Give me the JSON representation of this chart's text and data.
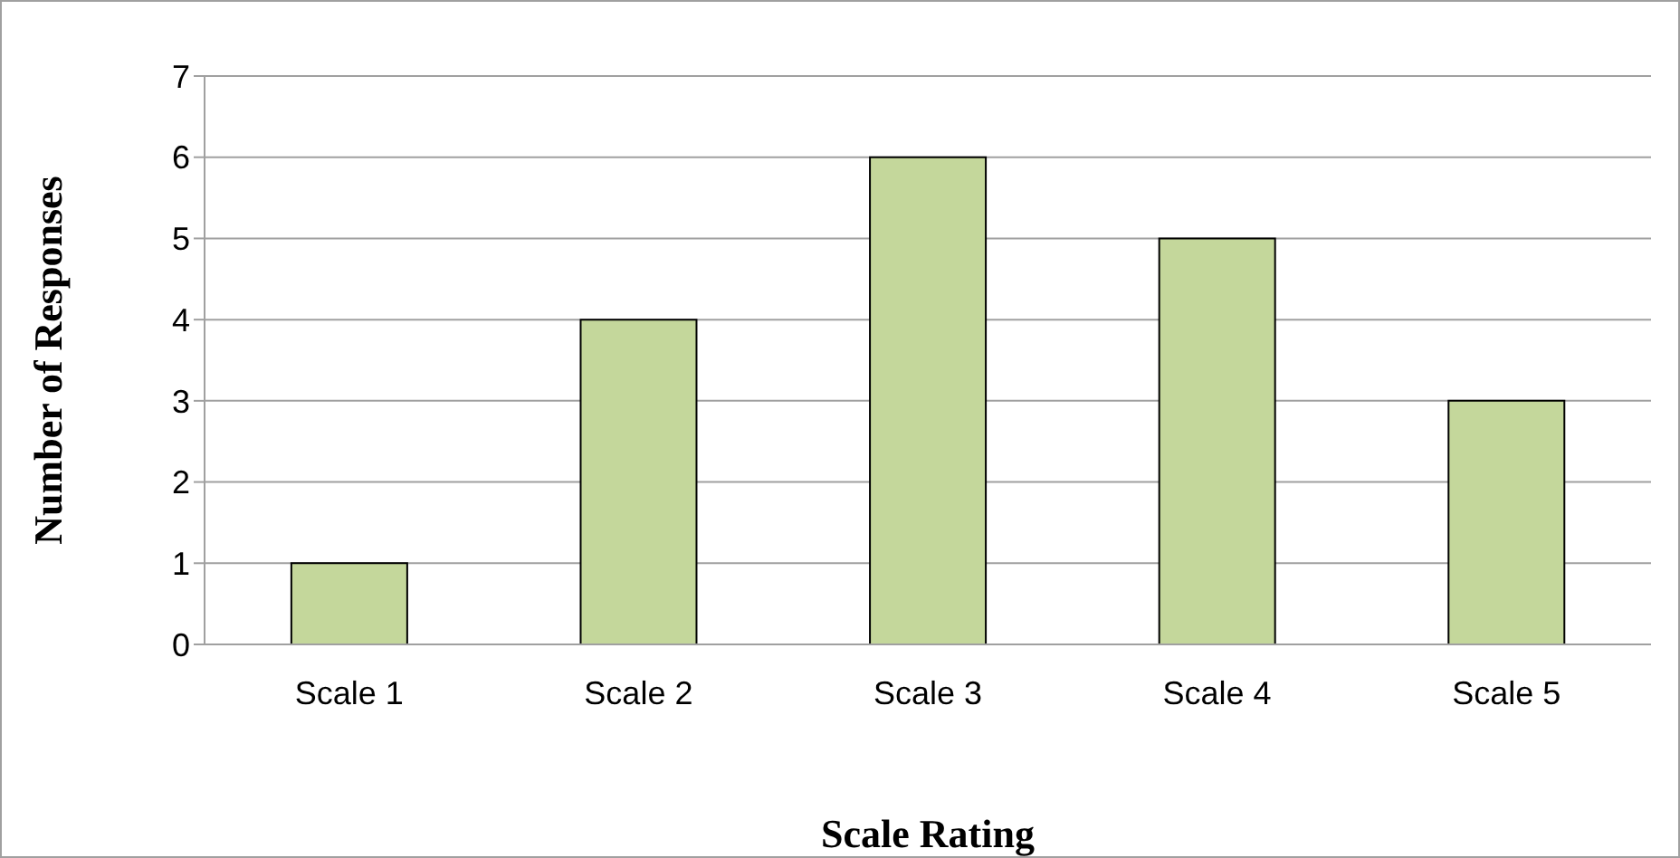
{
  "chart_data": {
    "type": "bar",
    "xlabel": "Scale Rating",
    "ylabel": "Number of Responses",
    "categories": [
      "Scale 1",
      "Scale 2",
      "Scale 3",
      "Scale 4",
      "Scale 5"
    ],
    "values": [
      1,
      4,
      6,
      5,
      3
    ],
    "color": "#c4d79b",
    "ylim": [
      0,
      7
    ],
    "yticks": [
      0,
      1,
      2,
      3,
      4,
      5,
      6,
      7
    ],
    "grid": "y",
    "legend": false
  }
}
